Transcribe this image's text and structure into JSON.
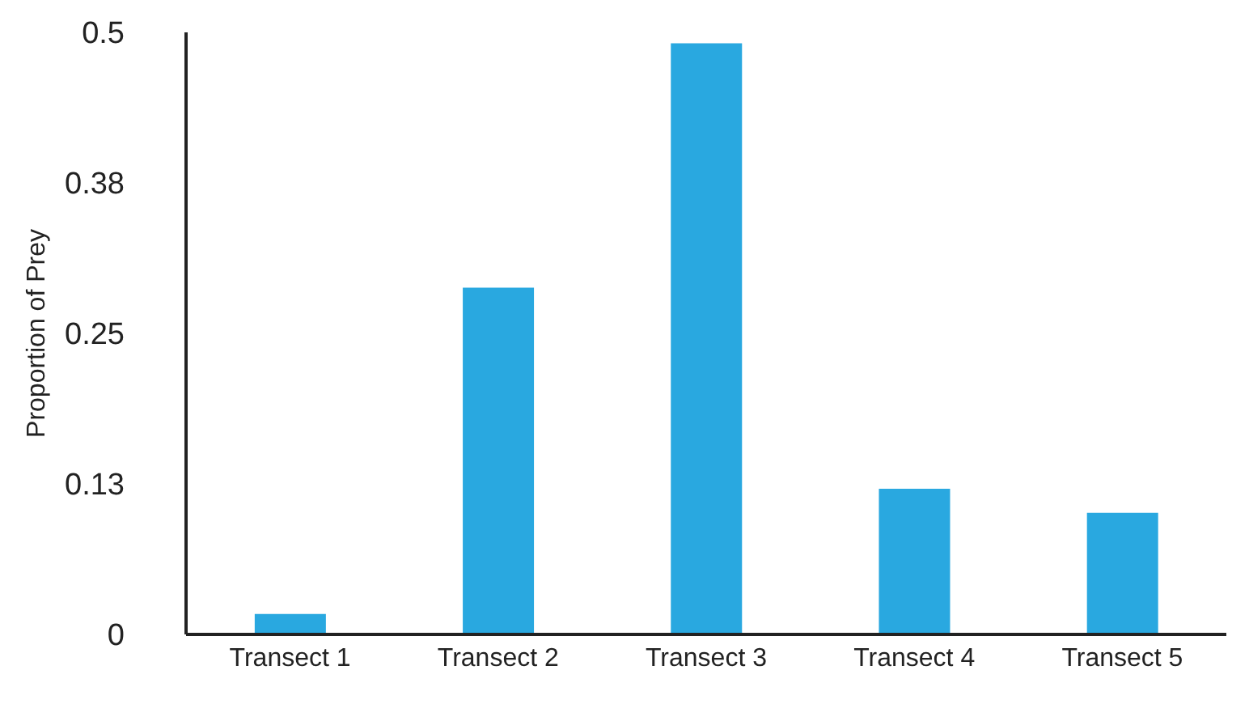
{
  "chart_data": {
    "type": "bar",
    "ylabel": "Proportion of Prey",
    "categories": [
      "Transect 1",
      "Transect 2",
      "Transect 3",
      "Transect 4",
      "Transect 5"
    ],
    "values": [
      0.017,
      0.288,
      0.491,
      0.121,
      0.101
    ],
    "color": "#29a8e0",
    "ylim": [
      0,
      0.5
    ],
    "yticks": [
      0,
      {
        "value": 0.125,
        "label": "0.13"
      },
      0.25,
      {
        "value": 0.375,
        "label": "0.38"
      },
      0.5
    ],
    "grid": false,
    "legend": false
  }
}
